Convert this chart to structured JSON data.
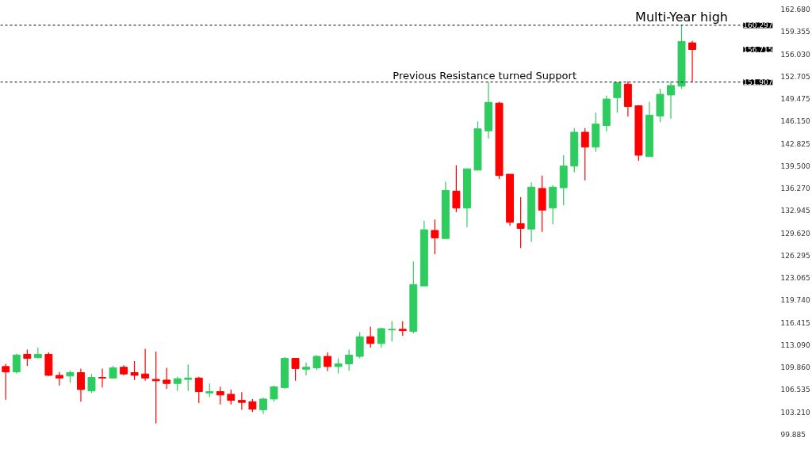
{
  "chart_data": {
    "type": "candlestick",
    "categories": [
      null,
      null,
      null,
      null,
      null,
      null,
      null,
      null,
      null,
      null,
      null,
      null,
      null,
      null,
      null,
      null,
      null,
      null,
      null,
      null,
      null,
      null,
      null,
      null,
      null,
      null,
      null,
      null,
      null,
      null,
      null,
      null,
      null,
      null,
      null,
      null,
      null,
      null,
      null,
      null,
      null,
      null,
      null,
      null,
      null,
      null,
      null,
      null,
      null,
      null,
      null,
      null,
      null,
      null,
      null,
      null,
      null,
      null,
      null,
      null,
      null,
      null,
      null,
      null,
      null,
      null,
      null,
      null,
      null,
      null,
      null,
      null
    ],
    "ohlc": [
      [
        109.9,
        110.3,
        105.0,
        109.1
      ],
      [
        109.1,
        111.8,
        108.9,
        111.6
      ],
      [
        111.7,
        112.4,
        110.0,
        111.1
      ],
      [
        111.2,
        112.7,
        111.1,
        111.7
      ],
      [
        111.7,
        112.0,
        108.5,
        108.6
      ],
      [
        108.6,
        109.1,
        107.1,
        108.2
      ],
      [
        108.5,
        109.3,
        107.5,
        109.0
      ],
      [
        109.0,
        109.6,
        104.7,
        106.5
      ],
      [
        106.3,
        108.8,
        106.0,
        108.3
      ],
      [
        108.3,
        109.6,
        106.8,
        108.2
      ],
      [
        108.2,
        110.0,
        108.2,
        109.7
      ],
      [
        109.8,
        110.1,
        108.6,
        108.8
      ],
      [
        109.0,
        110.7,
        107.9,
        108.6
      ],
      [
        108.8,
        112.5,
        107.8,
        108.2
      ],
      [
        108.0,
        112.1,
        101.5,
        107.8
      ],
      [
        107.9,
        109.7,
        106.6,
        107.4
      ],
      [
        107.4,
        108.4,
        106.3,
        108.1
      ],
      [
        108.0,
        110.2,
        106.3,
        108.2
      ],
      [
        108.2,
        108.4,
        104.5,
        106.2
      ],
      [
        106.0,
        107.4,
        105.4,
        106.2
      ],
      [
        106.2,
        106.9,
        104.3,
        105.7
      ],
      [
        105.8,
        106.5,
        104.3,
        104.9
      ],
      [
        104.9,
        106.1,
        103.5,
        104.6
      ],
      [
        104.7,
        105.1,
        103.2,
        103.6
      ],
      [
        103.5,
        105.3,
        102.9,
        105.1
      ],
      [
        105.1,
        107.1,
        104.7,
        106.9
      ],
      [
        106.8,
        111.3,
        106.6,
        111.1
      ],
      [
        111.1,
        111.1,
        107.8,
        109.6
      ],
      [
        109.5,
        110.5,
        108.6,
        109.8
      ],
      [
        109.7,
        111.6,
        109.4,
        111.4
      ],
      [
        111.4,
        112.0,
        109.2,
        109.9
      ],
      [
        109.9,
        111.1,
        108.9,
        110.3
      ],
      [
        110.3,
        112.4,
        109.3,
        111.6
      ],
      [
        111.4,
        115.0,
        111.1,
        114.3
      ],
      [
        114.3,
        115.8,
        112.7,
        113.3
      ],
      [
        113.3,
        115.6,
        112.7,
        115.5
      ],
      [
        115.3,
        116.6,
        113.6,
        115.4
      ],
      [
        115.4,
        116.6,
        114.4,
        115.2
      ],
      [
        115.1,
        125.4,
        114.8,
        122.0
      ],
      [
        121.8,
        131.4,
        121.8,
        130.1
      ],
      [
        130.0,
        131.6,
        126.5,
        128.9
      ],
      [
        128.8,
        137.2,
        128.8,
        135.9
      ],
      [
        135.8,
        139.6,
        132.7,
        133.3
      ],
      [
        133.3,
        139.1,
        130.5,
        139.1
      ],
      [
        138.9,
        146.1,
        138.9,
        145.0
      ],
      [
        144.7,
        151.9,
        143.6,
        148.9
      ],
      [
        148.8,
        149.0,
        137.6,
        138.1
      ],
      [
        138.3,
        138.3,
        130.7,
        131.2
      ],
      [
        131.0,
        134.9,
        127.4,
        130.3
      ],
      [
        130.2,
        137.1,
        128.3,
        136.4
      ],
      [
        136.2,
        138.1,
        129.8,
        133.0
      ],
      [
        133.3,
        136.7,
        130.9,
        136.4
      ],
      [
        136.3,
        141.1,
        133.7,
        139.5
      ],
      [
        139.5,
        145.1,
        138.6,
        144.5
      ],
      [
        144.5,
        145.1,
        137.4,
        142.3
      ],
      [
        142.3,
        147.4,
        141.6,
        145.7
      ],
      [
        145.5,
        149.9,
        144.6,
        149.4
      ],
      [
        149.6,
        151.9,
        147.4,
        151.8
      ],
      [
        151.6,
        152.0,
        146.8,
        148.3
      ],
      [
        148.4,
        148.5,
        140.3,
        141.1
      ],
      [
        140.9,
        149.0,
        140.9,
        147.0
      ],
      [
        146.9,
        150.9,
        146.0,
        150.1
      ],
      [
        150.0,
        152.0,
        146.5,
        151.4
      ],
      [
        151.3,
        160.3,
        150.9,
        157.9
      ],
      [
        157.7,
        158.0,
        151.9,
        156.715
      ],
      null,
      null,
      null,
      null,
      null,
      null,
      null
    ],
    "colors": [
      "#ff0000",
      "#2ecc5f",
      "#ff0000",
      "#2ecc5f",
      "#ff0000",
      "#ff0000",
      "#2ecc5f",
      "#ff0000",
      "#2ecc5f",
      "#ff0000",
      "#2ecc5f",
      "#ff0000",
      "#ff0000",
      "#ff0000",
      "#ff0000",
      "#ff0000",
      "#2ecc5f",
      "#2ecc5f",
      "#ff0000",
      "#2ecc5f",
      "#ff0000",
      "#ff0000",
      "#ff0000",
      "#ff0000",
      "#2ecc5f",
      "#2ecc5f",
      "#2ecc5f",
      "#ff0000",
      "#2ecc5f",
      "#2ecc5f",
      "#ff0000",
      "#2ecc5f",
      "#2ecc5f",
      "#2ecc5f",
      "#ff0000",
      "#2ecc5f",
      "#2ecc5f",
      "#ff0000",
      "#2ecc5f",
      "#2ecc5f",
      "#ff0000",
      "#2ecc5f",
      "#ff0000",
      "#2ecc5f",
      "#2ecc5f",
      "#2ecc5f",
      "#ff0000",
      "#ff0000",
      "#ff0000",
      "#2ecc5f",
      "#ff0000",
      "#2ecc5f",
      "#2ecc5f",
      "#2ecc5f",
      "#ff0000",
      "#2ecc5f",
      "#2ecc5f",
      "#2ecc5f",
      "#ff0000",
      "#ff0000",
      "#2ecc5f",
      "#2ecc5f",
      "#2ecc5f",
      "#2ecc5f",
      "#ff0000",
      null,
      null,
      null,
      null,
      null,
      null,
      null
    ],
    "ylim": [
      99.885,
      162.68
    ],
    "yticks": [
      {
        "value": 99.885,
        "label": "99.885"
      },
      {
        "value": 103.21,
        "label": "103.210"
      },
      {
        "value": 106.535,
        "label": "106.535"
      },
      {
        "value": 109.86,
        "label": "109.860"
      },
      {
        "value": 113.09,
        "label": "113.090"
      },
      {
        "value": 116.415,
        "label": "116.415"
      },
      {
        "value": 119.74,
        "label": "119.740"
      },
      {
        "value": 123.065,
        "label": "123.065"
      },
      {
        "value": 126.295,
        "label": "126.295"
      },
      {
        "value": 129.62,
        "label": "129.620"
      },
      {
        "value": 132.945,
        "label": "132.945"
      },
      {
        "value": 136.27,
        "label": "136.270"
      },
      {
        "value": 139.5,
        "label": "139.500"
      },
      {
        "value": 142.825,
        "label": "142.825"
      },
      {
        "value": 146.15,
        "label": "146.150"
      },
      {
        "value": 149.475,
        "label": "149.475"
      },
      {
        "value": 152.705,
        "label": "152.705"
      },
      {
        "value": 156.03,
        "label": "156.030"
      },
      {
        "value": 159.355,
        "label": "159.355"
      },
      {
        "value": 162.68,
        "label": "162.680"
      }
    ],
    "ref_lines": [
      {
        "axis": "y",
        "value": 160.297,
        "label": "Multi-Year high",
        "color": "#000000",
        "line_style": "dashed"
      },
      {
        "axis": "y",
        "value": 151.907,
        "label": "Previous Resistance turned Support",
        "color": "#000000",
        "line_style": "dashed"
      }
    ],
    "annotations": [
      "160.297",
      "151.907",
      "156.715"
    ],
    "tick_labels": "y",
    "grid": false
  }
}
